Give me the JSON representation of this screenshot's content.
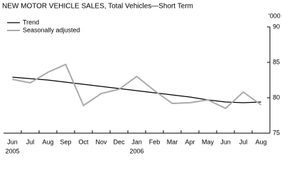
{
  "chart_data": {
    "type": "line",
    "title": "NEW MOTOR VEHICLE SALES, Total Vehicles—Short Term",
    "y_unit": "'000",
    "categories": [
      "Jun",
      "Jul",
      "Aug",
      "Sep",
      "Oct",
      "Nov",
      "Dec",
      "Jan",
      "Feb",
      "Mar",
      "Apr",
      "May",
      "Jun",
      "Jul",
      "Aug"
    ],
    "year_labels": [
      "2005",
      null,
      null,
      null,
      null,
      null,
      null,
      "2006",
      null,
      null,
      null,
      null,
      null,
      null,
      null
    ],
    "series": [
      {
        "name": "Trend",
        "color": "#000000",
        "values": [
          82.9,
          82.7,
          82.5,
          82.2,
          81.9,
          81.6,
          81.3,
          81.0,
          80.7,
          80.4,
          80.1,
          79.7,
          79.4,
          79.3,
          79.4
        ]
      },
      {
        "name": "Seasonally adjusted",
        "color": "#aaaaaa",
        "values": [
          82.6,
          82.1,
          83.6,
          84.7,
          78.9,
          80.6,
          81.2,
          83.0,
          81.0,
          79.2,
          79.3,
          79.7,
          78.5,
          80.8,
          79.0
        ]
      }
    ],
    "ylim": [
      75,
      90
    ],
    "yticks": [
      75,
      80,
      85,
      90
    ],
    "y_axis_side": "right",
    "grid": false,
    "legend": "upper left"
  }
}
